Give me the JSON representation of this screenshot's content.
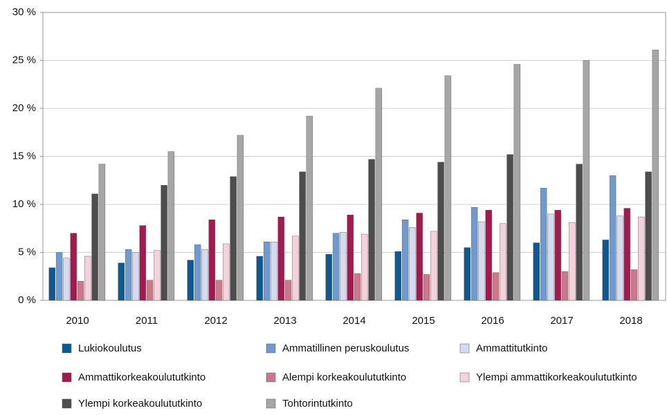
{
  "chart_data": {
    "type": "bar",
    "categories": [
      "2010",
      "2011",
      "2012",
      "2013",
      "2014",
      "2015",
      "2016",
      "2017",
      "2018"
    ],
    "series": [
      {
        "name": "Lukiokoulutus",
        "color": "#0b5a96",
        "values": [
          3.4,
          3.9,
          4.2,
          4.6,
          4.8,
          5.1,
          5.5,
          6.0,
          6.3
        ]
      },
      {
        "name": "Ammatillinen peruskoulutus",
        "color": "#6f9ad0",
        "values": [
          5.0,
          5.3,
          5.8,
          6.1,
          7.0,
          8.4,
          9.7,
          11.7,
          13.0
        ]
      },
      {
        "name": "Ammattitutkinto",
        "color": "#d3dcee",
        "values": [
          4.4,
          5.0,
          5.3,
          6.1,
          7.1,
          7.6,
          8.2,
          9.0,
          8.8
        ]
      },
      {
        "name": "Ammattikorkeakoulututkinto",
        "color": "#a01c4f",
        "values": [
          7.0,
          7.8,
          8.4,
          8.7,
          8.9,
          9.1,
          9.4,
          9.4,
          9.6
        ]
      },
      {
        "name": "Alempi korkeakoulututkinto",
        "color": "#c97a8a",
        "values": [
          2.0,
          2.1,
          2.1,
          2.1,
          2.8,
          2.7,
          2.9,
          3.0,
          3.2
        ]
      },
      {
        "name": "Ylempi ammattikorkeakoulututkinto",
        "color": "#f2d3dc",
        "values": [
          4.6,
          5.2,
          5.9,
          6.7,
          6.9,
          7.2,
          8.0,
          8.1,
          8.7
        ]
      },
      {
        "name": "Ylempi korkeakoulututkinto",
        "color": "#4d4d4d",
        "values": [
          11.1,
          12.0,
          12.9,
          13.4,
          14.7,
          14.4,
          15.2,
          14.2,
          13.4
        ]
      },
      {
        "name": "Tohtorintutkinto",
        "color": "#a6a6a6",
        "values": [
          14.2,
          15.5,
          17.2,
          19.2,
          22.1,
          23.4,
          24.6,
          25.0,
          26.1
        ]
      }
    ],
    "ylim": [
      0,
      30
    ],
    "yticks": [
      {
        "value": 0,
        "label": "0 %"
      },
      {
        "value": 5,
        "label": "5 %"
      },
      {
        "value": 10,
        "label": "10 %"
      },
      {
        "value": 15,
        "label": "15 %"
      },
      {
        "value": 20,
        "label": "20 %"
      },
      {
        "value": 25,
        "label": "25 %"
      },
      {
        "value": 30,
        "label": "30 %"
      }
    ],
    "grid": true
  }
}
